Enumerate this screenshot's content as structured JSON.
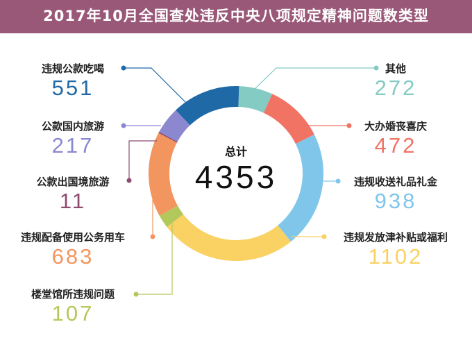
{
  "chart_data": {
    "type": "pie",
    "title": "2017年10月全国查处违反中央八项规定精神问题数类型",
    "total_label": "总计",
    "total": "4353",
    "categories": [
      "其他",
      "大办婚丧喜庆",
      "违规收送礼品礼金",
      "违规发放津补贴或福利",
      "楼堂馆所违规问题",
      "违规配备使用公务用车",
      "公款出国境旅游",
      "公款国内旅游",
      "违规公款吃喝"
    ],
    "values": [
      272,
      472,
      938,
      1102,
      107,
      683,
      11,
      217,
      551
    ],
    "colors": [
      "#83cbc3",
      "#f07364",
      "#80c6eb",
      "#f9d263",
      "#b3c85b",
      "#f3955f",
      "#8e4b70",
      "#8b88d0",
      "#1f69a6"
    ],
    "donut": true
  }
}
